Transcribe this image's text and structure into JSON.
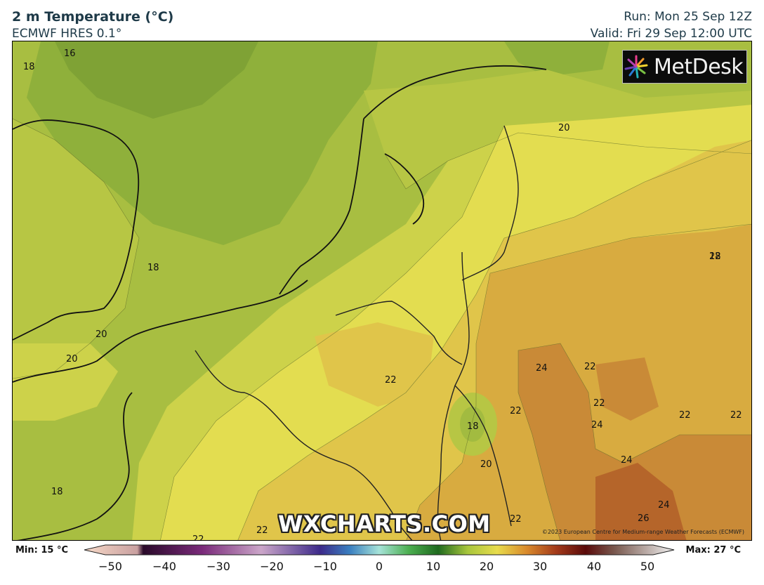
{
  "header": {
    "title": "2 m Temperature (°C)",
    "model": "ECMWF HRES 0.1°",
    "run": "Run: Mon 25 Sep 12Z",
    "valid": "Valid: Fri 29 Sep 12:00 UTC"
  },
  "logo": {
    "text": "MetDesk",
    "icon": "metdesk-starburst-icon"
  },
  "watermark": "WXCHARTS.COM",
  "copyright": "©2023 European Centre for Medium-range Weather Forecasts (ECMWF)",
  "contour_labels": [
    "16",
    "18",
    "18",
    "20",
    "20",
    "18",
    "22",
    "24",
    "22",
    "22",
    "22",
    "24",
    "22",
    "22",
    "18",
    "20",
    "24",
    "24",
    "26",
    "22",
    "22",
    "22",
    "18",
    "20",
    "22"
  ],
  "colorbar": {
    "min_label": "Min: 15 °C",
    "max_label": "Max: 27 °C",
    "ticks": [
      "−50",
      "−40",
      "−30",
      "−20",
      "−10",
      "0",
      "10",
      "20",
      "30",
      "40",
      "50"
    ]
  },
  "colors": {
    "t16": "#7fa235",
    "t17": "#8fb03b",
    "t18": "#a2bb40",
    "t19": "#b7c644",
    "t20": "#cdd24a",
    "t21": "#e3dd50",
    "t22": "#e0c54a",
    "t23": "#d8ab40",
    "t24": "#c98a37",
    "t26": "#b5652a",
    "coast": "#111111",
    "border": "#222222"
  }
}
